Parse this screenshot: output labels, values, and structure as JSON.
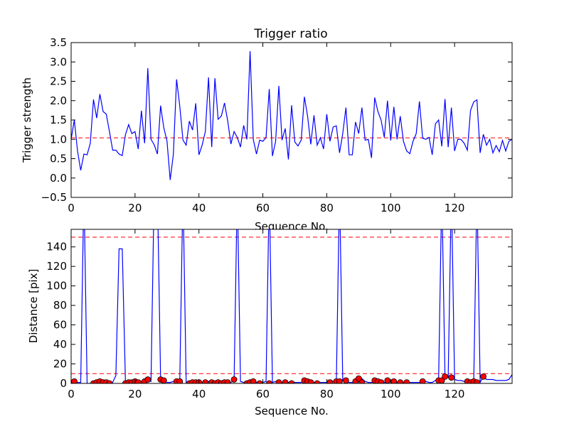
{
  "chart_data": [
    {
      "type": "line",
      "title": "Trigger ratio",
      "xlabel": "Sequence No.",
      "ylabel": "Trigger strength",
      "xlim": [
        0,
        138
      ],
      "ylim": [
        -0.5,
        3.5
      ],
      "xticks": [
        0,
        20,
        40,
        60,
        80,
        100,
        120
      ],
      "yticks": [
        -0.5,
        0.0,
        0.5,
        1.0,
        1.5,
        2.0,
        2.5,
        3.0,
        3.5
      ],
      "xtick_labels": [
        "0",
        "20",
        "40",
        "60",
        "80",
        "100",
        "120"
      ],
      "ytick_labels": [
        "−0.5",
        "0.0",
        "0.5",
        "1.0",
        "1.5",
        "2.0",
        "2.5",
        "3.0",
        "3.5"
      ],
      "grid": false,
      "line_color": "#0000ff",
      "values": [
        1.0,
        1.5,
        0.7,
        0.2,
        0.62,
        0.6,
        0.9,
        2.03,
        1.55,
        2.17,
        1.72,
        1.65,
        1.2,
        0.72,
        0.72,
        0.62,
        0.58,
        1.12,
        1.38,
        1.15,
        1.2,
        0.75,
        1.74,
        0.9,
        2.84,
        1.0,
        0.86,
        0.62,
        1.87,
        1.3,
        0.96,
        -0.05,
        0.62,
        2.55,
        1.86,
        0.98,
        0.85,
        1.47,
        1.24,
        1.93,
        0.6,
        0.85,
        1.2,
        2.6,
        0.8,
        2.58,
        1.52,
        1.6,
        1.94,
        1.48,
        0.88,
        1.2,
        1.05,
        0.8,
        1.36,
        1.0,
        3.28,
        1.0,
        0.62,
        0.98,
        0.95,
        1.05,
        2.3,
        0.57,
        0.95,
        2.38,
        0.98,
        1.28,
        0.48,
        1.88,
        0.93,
        0.83,
        0.98,
        2.1,
        1.6,
        0.87,
        1.62,
        0.85,
        1.04,
        0.75,
        1.65,
        0.95,
        1.32,
        1.35,
        0.65,
        1.15,
        1.82,
        0.6,
        0.6,
        1.45,
        1.15,
        1.82,
        0.98,
        1.0,
        0.52,
        2.08,
        1.72,
        1.5,
        1.05,
        2.0,
        0.97,
        1.84,
        1.0,
        1.6,
        0.95,
        0.7,
        0.63,
        0.95,
        1.15,
        1.98,
        1.03,
        1.0,
        1.05,
        0.6,
        1.4,
        1.5,
        0.82,
        2.04,
        0.8,
        1.82,
        0.7,
        1.0,
        1.0,
        0.9,
        0.72,
        1.75,
        1.97,
        2.02,
        0.65,
        1.13,
        0.85,
        1.0,
        0.65,
        0.84,
        0.68,
        0.97,
        0.7,
        0.95,
        1.0
      ],
      "threshold": {
        "value": 1.04,
        "color": "#ff0000",
        "style": "dashed"
      }
    },
    {
      "type": "line",
      "title": "",
      "xlabel": "Sequence No.",
      "ylabel": "Distance [pix]",
      "xlim": [
        0,
        138
      ],
      "ylim": [
        0,
        158
      ],
      "xticks": [
        0,
        20,
        40,
        60,
        80,
        100,
        120
      ],
      "yticks": [
        0,
        20,
        40,
        60,
        80,
        100,
        120,
        140
      ],
      "xtick_labels": [
        "0",
        "20",
        "40",
        "60",
        "80",
        "100",
        "120"
      ],
      "ytick_labels": [
        "0",
        "20",
        "40",
        "60",
        "80",
        "100",
        "120",
        "140"
      ],
      "grid": false,
      "line_color": "#0000ff",
      "marker_color": "#ff0000",
      "values": [
        2,
        2,
        1,
        1,
        200,
        0,
        0,
        1,
        1,
        2,
        2,
        1,
        1,
        1,
        8,
        138,
        138,
        1,
        2,
        2,
        2,
        1,
        2,
        3,
        3,
        2,
        200,
        200,
        4,
        3,
        1,
        1,
        2,
        2,
        2,
        200,
        1,
        1,
        1,
        2,
        2,
        1,
        2,
        2,
        1,
        1,
        1,
        1,
        1,
        2,
        1,
        3,
        200,
        2,
        1,
        1,
        2,
        2,
        1,
        1,
        1,
        2,
        200,
        1,
        2,
        1,
        1,
        1,
        1,
        1,
        1,
        1,
        1,
        3,
        3,
        2,
        1,
        1,
        1,
        1,
        1,
        2,
        2,
        2,
        200,
        3,
        2,
        1,
        1,
        1,
        2,
        5,
        2,
        1,
        1,
        2,
        3,
        2,
        1,
        1,
        2,
        2,
        1,
        1,
        1,
        1,
        1,
        1,
        1,
        1,
        2,
        2,
        1,
        1,
        3,
        3,
        200,
        7,
        6,
        200,
        4,
        3,
        3,
        2,
        2,
        2,
        2,
        200,
        1,
        7,
        4,
        4,
        4,
        3,
        3,
        3,
        3,
        4,
        9
      ],
      "markers": [
        [
          1,
          2
        ],
        [
          7,
          0
        ],
        [
          8,
          1
        ],
        [
          9,
          2
        ],
        [
          10,
          1
        ],
        [
          11,
          1
        ],
        [
          12,
          0
        ],
        [
          17,
          0
        ],
        [
          18,
          1
        ],
        [
          19,
          1
        ],
        [
          20,
          2
        ],
        [
          21,
          1
        ],
        [
          23,
          2
        ],
        [
          24,
          4
        ],
        [
          28,
          4
        ],
        [
          29,
          3
        ],
        [
          33,
          2
        ],
        [
          34,
          2
        ],
        [
          37,
          0
        ],
        [
          38,
          1
        ],
        [
          39,
          1
        ],
        [
          40,
          1
        ],
        [
          42,
          1
        ],
        [
          44,
          1
        ],
        [
          45,
          0
        ],
        [
          46,
          1
        ],
        [
          47,
          0
        ],
        [
          48,
          1
        ],
        [
          49,
          1
        ],
        [
          51,
          4
        ],
        [
          55,
          0
        ],
        [
          56,
          1
        ],
        [
          57,
          2
        ],
        [
          59,
          0
        ],
        [
          62,
          0
        ],
        [
          65,
          1
        ],
        [
          67,
          1
        ],
        [
          69,
          0
        ],
        [
          73,
          3
        ],
        [
          74,
          2
        ],
        [
          75,
          1
        ],
        [
          77,
          0
        ],
        [
          81,
          1
        ],
        [
          83,
          2
        ],
        [
          84,
          2
        ],
        [
          86,
          3
        ],
        [
          89,
          2
        ],
        [
          90,
          5
        ],
        [
          91,
          1
        ],
        [
          95,
          3
        ],
        [
          96,
          2
        ],
        [
          97,
          1
        ],
        [
          99,
          3
        ],
        [
          101,
          2
        ],
        [
          103,
          1
        ],
        [
          105,
          1
        ],
        [
          110,
          2
        ],
        [
          115,
          3
        ],
        [
          116,
          3
        ],
        [
          117,
          7
        ],
        [
          119,
          6
        ],
        [
          124,
          2
        ],
        [
          125,
          1
        ],
        [
          126,
          2
        ],
        [
          127,
          1
        ],
        [
          129,
          7
        ]
      ],
      "thresholds": [
        {
          "value": 150,
          "color": "#ff0000",
          "style": "dashed"
        },
        {
          "value": 10,
          "color": "#ff0000",
          "style": "dashed"
        }
      ]
    }
  ]
}
